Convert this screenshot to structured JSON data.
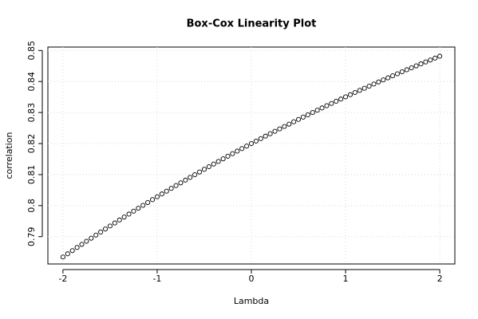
{
  "chart_data": {
    "type": "scatter",
    "title": "Box-Cox Linearity Plot",
    "x_label": "Lambda",
    "y_label": "correlation",
    "x": [
      -2,
      -1.95,
      -1.9,
      -1.85,
      -1.8,
      -1.75,
      -1.7,
      -1.65,
      -1.6,
      -1.55,
      -1.5,
      -1.45,
      -1.4,
      -1.35,
      -1.3,
      -1.25,
      -1.2,
      -1.15,
      -1.1,
      -1.05,
      -1,
      -0.95,
      -0.9,
      -0.85,
      -0.8,
      -0.75,
      -0.7,
      -0.65,
      -0.6,
      -0.55,
      -0.5,
      -0.45,
      -0.4,
      -0.35,
      -0.3,
      -0.25,
      -0.2,
      -0.15,
      -0.1,
      -0.05,
      0,
      0.05,
      0.1,
      0.15,
      0.2,
      0.25,
      0.3,
      0.35,
      0.4,
      0.45,
      0.5,
      0.55,
      0.6,
      0.65,
      0.7,
      0.75,
      0.8,
      0.85,
      0.9,
      0.95,
      1,
      1.05,
      1.1,
      1.15,
      1.2,
      1.25,
      1.3,
      1.35,
      1.4,
      1.45,
      1.5,
      1.55,
      1.6,
      1.65,
      1.7,
      1.75,
      1.8,
      1.85,
      1.9,
      1.95,
      2
    ],
    "values": [
      0.78345,
      0.78448,
      0.7855,
      0.78651,
      0.78752,
      0.78852,
      0.78951,
      0.79051,
      0.79149,
      0.79247,
      0.79344,
      0.79441,
      0.79537,
      0.79632,
      0.79727,
      0.79822,
      0.79916,
      0.80009,
      0.80101,
      0.80193,
      0.80285,
      0.80376,
      0.80466,
      0.80556,
      0.80646,
      0.80734,
      0.80822,
      0.8091,
      0.80997,
      0.81084,
      0.8117,
      0.81255,
      0.8134,
      0.81424,
      0.81508,
      0.81592,
      0.81674,
      0.81757,
      0.81838,
      0.81919,
      0.82,
      0.8208,
      0.8216,
      0.82239,
      0.82317,
      0.82395,
      0.82473,
      0.8255,
      0.82626,
      0.82702,
      0.82778,
      0.82853,
      0.82927,
      0.83001,
      0.83075,
      0.83148,
      0.8322,
      0.83292,
      0.83364,
      0.83434,
      0.83505,
      0.83575,
      0.83645,
      0.83714,
      0.83782,
      0.8385,
      0.83918,
      0.83985,
      0.84052,
      0.84118,
      0.84183,
      0.84249,
      0.84313,
      0.84378,
      0.84442,
      0.84505,
      0.84568,
      0.8463,
      0.84692,
      0.84754,
      0.84815
    ],
    "color": "#000000",
    "xlim": [
      -2.16,
      2.16
    ],
    "xticks": [
      -2,
      -1,
      0,
      1,
      2
    ],
    "ylim": [
      0.7812,
      0.8511
    ],
    "yticks": [
      0.79,
      0.8,
      0.81,
      0.82,
      0.83,
      0.84,
      0.85
    ],
    "grid": true
  }
}
